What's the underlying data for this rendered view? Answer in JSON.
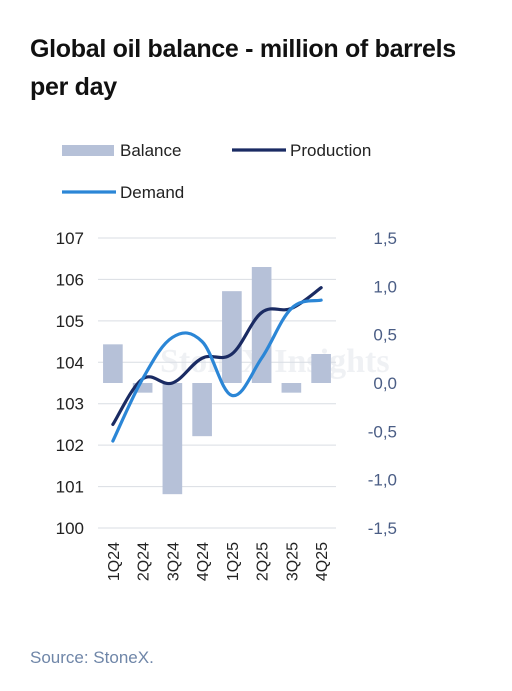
{
  "title": "Global oil balance - million of barrels per day",
  "source": "Source: StoneX.",
  "colors": {
    "balance": "#b6c1d8",
    "production": "#1a2b63",
    "demand": "#2b86d6",
    "grid": "#d9dde3",
    "left_axis_text": "#222222",
    "right_axis_text": "#4a5d85"
  },
  "watermark": "StoneX Insights",
  "chart_data": {
    "type": "bar+line",
    "categories": [
      "1Q24",
      "2Q24",
      "3Q24",
      "4Q24",
      "1Q25",
      "2Q25",
      "3Q25",
      "4Q25"
    ],
    "series": [
      {
        "name": "Balance",
        "type": "bar",
        "axis": "right",
        "values": [
          0.4,
          -0.1,
          -1.15,
          -0.55,
          0.95,
          1.2,
          -0.1,
          0.3
        ]
      },
      {
        "name": "Production",
        "type": "line",
        "axis": "left",
        "values": [
          102.5,
          103.6,
          103.5,
          104.1,
          104.2,
          105.2,
          105.3,
          105.8
        ]
      },
      {
        "name": "Demand",
        "type": "line",
        "axis": "left",
        "values": [
          102.1,
          103.6,
          104.6,
          104.5,
          103.2,
          104.1,
          105.3,
          105.5
        ]
      }
    ],
    "left_axis": {
      "min": 100,
      "max": 107,
      "ticks": [
        "100",
        "101",
        "102",
        "103",
        "104",
        "105",
        "106",
        "107"
      ]
    },
    "right_axis": {
      "min": -1.5,
      "max": 1.5,
      "ticks": [
        "-1,5",
        "-1,0",
        "-0,5",
        "0,0",
        "0,5",
        "1,0",
        "1,5"
      ]
    },
    "legend": [
      {
        "label": "Balance",
        "kind": "bar"
      },
      {
        "label": "Production",
        "kind": "line"
      },
      {
        "label": "Demand",
        "kind": "line"
      }
    ],
    "legend_position": "top",
    "grid": true
  }
}
